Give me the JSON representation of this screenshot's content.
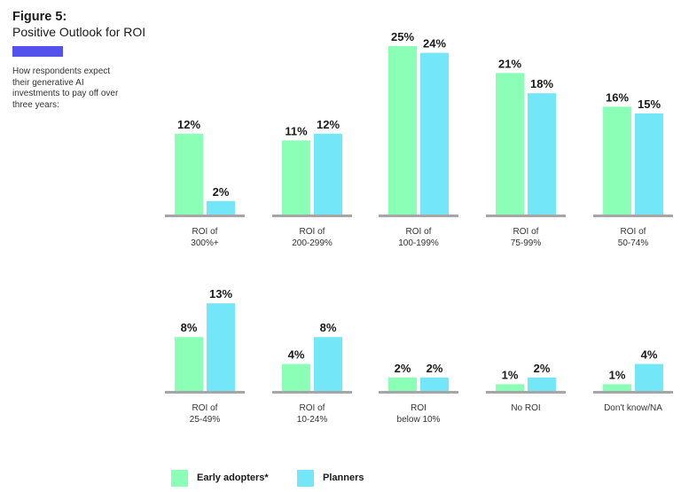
{
  "header": {
    "figure_number": "Figure 5:",
    "title": "Positive Outlook for ROI",
    "description": "How respondents expect their generative AI investments to pay off over three years:"
  },
  "colors": {
    "accent": "#5352ed",
    "early_adopters": "#8affb5",
    "planners": "#73e6f8",
    "baseline": "#a6a6a6"
  },
  "legend": {
    "early_adopters": "Early adopters*",
    "planners": "Planners"
  },
  "chart_data": {
    "type": "bar",
    "categories": [
      [
        "ROI of",
        "300%+"
      ],
      [
        "ROI of",
        "200-299%"
      ],
      [
        "ROI of",
        "100-199%"
      ],
      [
        "ROI of",
        "75-99%"
      ],
      [
        "ROI of",
        "50-74%"
      ],
      [
        "ROI of",
        "25-49%"
      ],
      [
        "ROI of",
        "10-24%"
      ],
      [
        "ROI",
        "below 10%"
      ],
      [
        "No ROI"
      ],
      [
        "Don't know/NA"
      ]
    ],
    "series": [
      {
        "name": "Early adopters*",
        "values": [
          12,
          11,
          25,
          21,
          16,
          8,
          4,
          2,
          1,
          1
        ],
        "labels": [
          "12%",
          "11%",
          "25%",
          "21%",
          "16%",
          "8%",
          "4%",
          "2%",
          "1%",
          "1%"
        ]
      },
      {
        "name": "Planners",
        "values": [
          2,
          12,
          24,
          18,
          15,
          13,
          8,
          2,
          2,
          4
        ],
        "labels": [
          "2%",
          "12%",
          "24%",
          "18%",
          "15%",
          "13%",
          "8%",
          "2%",
          "2%",
          "4%"
        ]
      }
    ],
    "ylim": [
      0,
      25
    ],
    "grid": false,
    "legend_position": "bottom-left"
  }
}
